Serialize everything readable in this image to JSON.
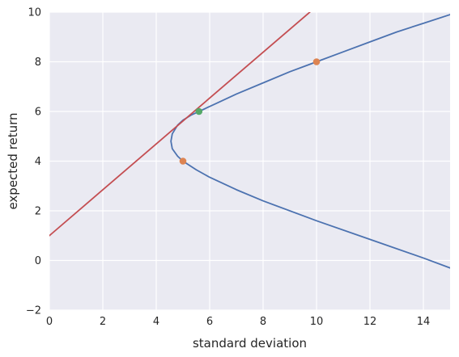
{
  "chart_data": {
    "type": "line",
    "title": "",
    "xlabel": "standard deviation",
    "ylabel": "expected return",
    "xlim": [
      0,
      15
    ],
    "ylim": [
      -2,
      10
    ],
    "x_ticks": [
      0,
      2,
      4,
      6,
      8,
      10,
      12,
      14
    ],
    "y_ticks": [
      -2,
      0,
      2,
      4,
      6,
      8,
      10
    ],
    "x_tick_labels": [
      "0",
      "2",
      "4",
      "6",
      "8",
      "10",
      "12",
      "14"
    ],
    "y_tick_labels": [
      "−2",
      "0",
      "2",
      "4",
      "6",
      "8",
      "10"
    ],
    "grid": true,
    "background": "#eaeaf2",
    "series": [
      {
        "kind": "frontier-curve",
        "color": "#4c72b0",
        "points": [
          [
            15.0,
            -0.3
          ],
          [
            14.0,
            0.1
          ],
          [
            12.0,
            0.85
          ],
          [
            10.0,
            1.6
          ],
          [
            8.0,
            2.4
          ],
          [
            7.0,
            2.85
          ],
          [
            6.0,
            3.35
          ],
          [
            5.5,
            3.65
          ],
          [
            5.0,
            4.0
          ],
          [
            4.8,
            4.2
          ],
          [
            4.6,
            4.5
          ],
          [
            4.55,
            4.8
          ],
          [
            4.6,
            5.1
          ],
          [
            4.8,
            5.45
          ],
          [
            5.0,
            5.65
          ],
          [
            5.3,
            5.85
          ],
          [
            5.6,
            6.0
          ],
          [
            6.0,
            6.2
          ],
          [
            7.0,
            6.7
          ],
          [
            8.0,
            7.15
          ],
          [
            9.0,
            7.6
          ],
          [
            10.0,
            8.0
          ],
          [
            11.0,
            8.4
          ],
          [
            12.0,
            8.8
          ],
          [
            13.0,
            9.2
          ],
          [
            14.0,
            9.55
          ],
          [
            15.0,
            9.9
          ]
        ]
      },
      {
        "kind": "tangent-line",
        "color": "#c44e52",
        "points": [
          [
            0.0,
            1.0
          ],
          [
            9.75,
            10.0
          ]
        ]
      }
    ],
    "markers": [
      {
        "x": 10.0,
        "y": 8.0,
        "color": "#dd8452"
      },
      {
        "x": 5.0,
        "y": 4.0,
        "color": "#dd8452"
      },
      {
        "x": 5.6,
        "y": 6.0,
        "color": "#55a868"
      }
    ]
  }
}
